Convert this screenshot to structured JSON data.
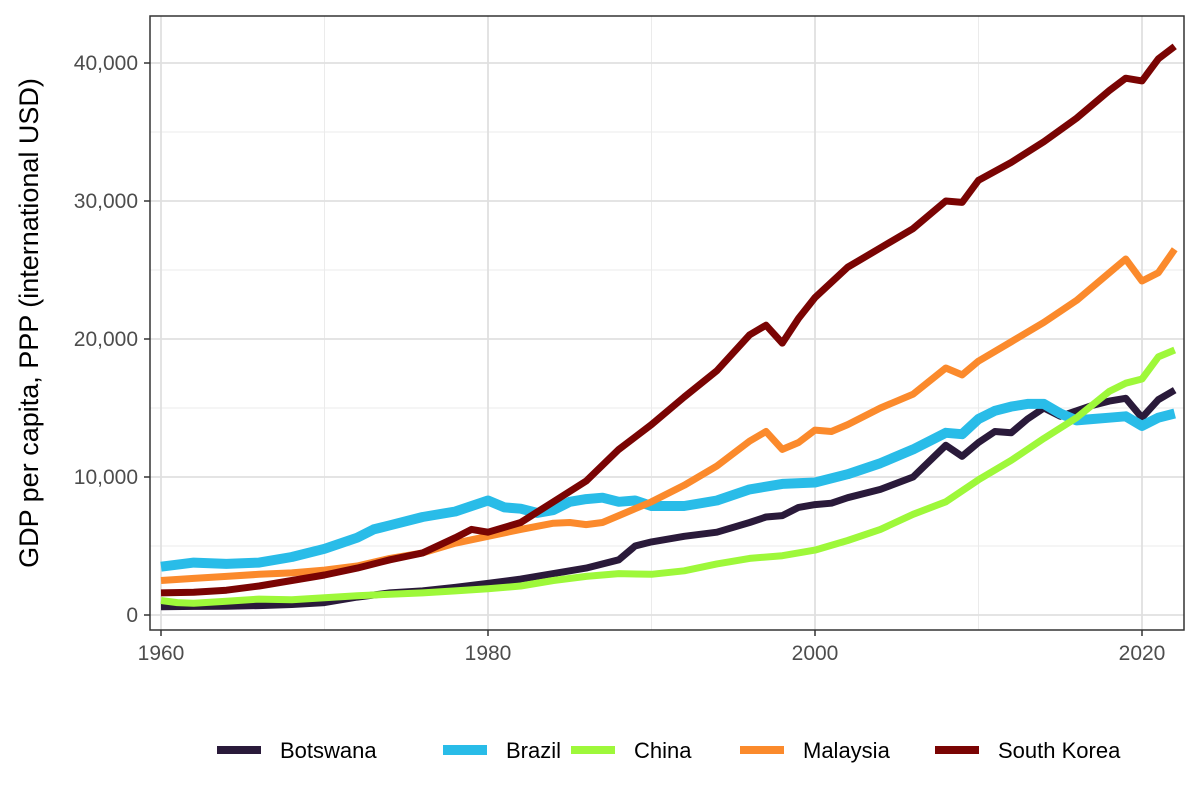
{
  "chart_data": {
    "type": "line",
    "title": "",
    "xlabel": "",
    "ylabel": "GDP per capita, PPP (international USD)",
    "xlim": [
      1960,
      2022
    ],
    "ylim": [
      0,
      42000
    ],
    "x_ticks": [
      1960,
      1980,
      2000,
      2020
    ],
    "x_tick_labels": [
      "1960",
      "1980",
      "2000",
      "2020"
    ],
    "y_ticks": [
      0,
      10000,
      20000,
      30000,
      40000
    ],
    "y_tick_labels": [
      "0",
      "10,000",
      "20,000",
      "30,000",
      "40,000"
    ],
    "grid": true,
    "legend_position": "bottom",
    "series": [
      {
        "name": "Botswana",
        "color": "#2a1a3a",
        "x": [
          1960,
          1962,
          1964,
          1966,
          1968,
          1970,
          1972,
          1974,
          1976,
          1978,
          1980,
          1982,
          1984,
          1986,
          1988,
          1989,
          1990,
          1992,
          1994,
          1996,
          1997,
          1998,
          1999,
          2000,
          2001,
          2002,
          2004,
          2006,
          2008,
          2009,
          2010,
          2011,
          2012,
          2013,
          2014,
          2015,
          2016,
          2017,
          2018,
          2019,
          2020,
          2021,
          2022
        ],
        "values": [
          600,
          620,
          640,
          680,
          760,
          900,
          1300,
          1600,
          1750,
          2000,
          2300,
          2600,
          3000,
          3400,
          4000,
          5000,
          5300,
          5700,
          6000,
          6700,
          7100,
          7200,
          7800,
          8000,
          8100,
          8500,
          9100,
          10000,
          12300,
          11500,
          12500,
          13300,
          13200,
          14200,
          15000,
          14400,
          14800,
          15200,
          15500,
          15700,
          14300,
          15600,
          16300
        ]
      },
      {
        "name": "Brazil",
        "color": "#29bce8",
        "x": [
          1960,
          1962,
          1964,
          1966,
          1968,
          1970,
          1972,
          1973,
          1974,
          1976,
          1978,
          1979,
          1980,
          1981,
          1982,
          1983,
          1984,
          1985,
          1986,
          1987,
          1988,
          1989,
          1990,
          1992,
          1994,
          1996,
          1998,
          2000,
          2002,
          2004,
          2006,
          2008,
          2009,
          2010,
          2011,
          2012,
          2013,
          2014,
          2015,
          2016,
          2017,
          2018,
          2019,
          2020,
          2021,
          2022
        ],
        "values": [
          3500,
          3800,
          3700,
          3800,
          4200,
          4800,
          5600,
          6200,
          6500,
          7100,
          7500,
          7900,
          8300,
          7800,
          7700,
          7400,
          7600,
          8200,
          8400,
          8500,
          8200,
          8300,
          7900,
          7900,
          8300,
          9100,
          9500,
          9600,
          10200,
          11000,
          12000,
          13200,
          13100,
          14200,
          14800,
          15100,
          15300,
          15300,
          14600,
          14100,
          14200,
          14300,
          14400,
          13700,
          14300,
          14600
        ]
      },
      {
        "name": "China",
        "color": "#9ef83a",
        "x": [
          1960,
          1961,
          1962,
          1964,
          1966,
          1968,
          1970,
          1972,
          1974,
          1976,
          1978,
          1980,
          1982,
          1984,
          1986,
          1988,
          1990,
          1992,
          1994,
          1996,
          1998,
          2000,
          2002,
          2004,
          2006,
          2008,
          2010,
          2012,
          2014,
          2016,
          2018,
          2019,
          2020,
          2021,
          2022
        ],
        "values": [
          1050,
          900,
          850,
          1000,
          1150,
          1100,
          1250,
          1400,
          1500,
          1600,
          1750,
          1900,
          2100,
          2500,
          2800,
          3000,
          2950,
          3200,
          3700,
          4100,
          4300,
          4700,
          5400,
          6200,
          7300,
          8200,
          9800,
          11200,
          12800,
          14300,
          16200,
          16800,
          17100,
          18700,
          19200
        ]
      },
      {
        "name": "Malaysia",
        "color": "#fb8a2c",
        "x": [
          1960,
          1962,
          1964,
          1966,
          1968,
          1970,
          1972,
          1974,
          1976,
          1978,
          1980,
          1982,
          1984,
          1985,
          1986,
          1987,
          1988,
          1990,
          1992,
          1994,
          1996,
          1997,
          1998,
          1999,
          2000,
          2001,
          2002,
          2004,
          2006,
          2008,
          2009,
          2010,
          2012,
          2014,
          2016,
          2018,
          2019,
          2020,
          2021,
          2022
        ],
        "values": [
          2500,
          2650,
          2800,
          2950,
          3050,
          3250,
          3550,
          4100,
          4500,
          5200,
          5700,
          6200,
          6650,
          6700,
          6550,
          6700,
          7200,
          8200,
          9400,
          10800,
          12600,
          13300,
          12000,
          12500,
          13400,
          13300,
          13800,
          15000,
          16000,
          17900,
          17400,
          18400,
          19800,
          21200,
          22800,
          24800,
          25800,
          24200,
          24800,
          26500
        ]
      },
      {
        "name": "South Korea",
        "color": "#7a0403",
        "x": [
          1960,
          1962,
          1964,
          1966,
          1968,
          1970,
          1972,
          1974,
          1976,
          1978,
          1979,
          1980,
          1982,
          1984,
          1986,
          1988,
          1990,
          1992,
          1994,
          1996,
          1997,
          1998,
          1999,
          2000,
          2002,
          2004,
          2006,
          2008,
          2009,
          2010,
          2012,
          2014,
          2016,
          2018,
          2019,
          2020,
          2021,
          2022
        ],
        "values": [
          1600,
          1650,
          1800,
          2100,
          2500,
          2900,
          3400,
          4000,
          4500,
          5600,
          6200,
          6000,
          6700,
          8200,
          9700,
          12000,
          13800,
          15800,
          17700,
          20300,
          21000,
          19700,
          21500,
          23000,
          25200,
          26600,
          28000,
          30000,
          29900,
          31500,
          32800,
          34300,
          36000,
          38000,
          38900,
          38700,
          40300,
          41200
        ]
      }
    ]
  }
}
